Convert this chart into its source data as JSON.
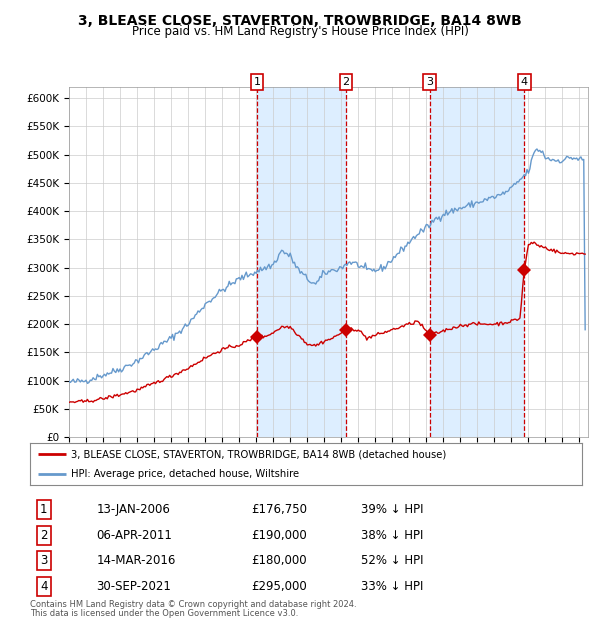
{
  "title": "3, BLEASE CLOSE, STAVERTON, TROWBRIDGE, BA14 8WB",
  "subtitle": "Price paid vs. HM Land Registry's House Price Index (HPI)",
  "legend_line1": "3, BLEASE CLOSE, STAVERTON, TROWBRIDGE, BA14 8WB (detached house)",
  "legend_line2": "HPI: Average price, detached house, Wiltshire",
  "footer1": "Contains HM Land Registry data © Crown copyright and database right 2024.",
  "footer2": "This data is licensed under the Open Government Licence v3.0.",
  "transactions": [
    {
      "num": 1,
      "date": "13-JAN-2006",
      "price": 176750,
      "pct": "39% ↓ HPI",
      "date_val": 2006.04
    },
    {
      "num": 2,
      "date": "06-APR-2011",
      "price": 190000,
      "pct": "38% ↓ HPI",
      "date_val": 2011.27
    },
    {
      "num": 3,
      "date": "14-MAR-2016",
      "price": 180000,
      "pct": "52% ↓ HPI",
      "date_val": 2016.2
    },
    {
      "num": 4,
      "date": "30-SEP-2021",
      "price": 295000,
      "pct": "33% ↓ HPI",
      "date_val": 2021.75
    }
  ],
  "hpi_color": "#6699cc",
  "price_color": "#cc0000",
  "marker_color": "#cc0000",
  "dashed_color": "#cc0000",
  "shade_color": "#ddeeff",
  "grid_color": "#cccccc",
  "bg_color": "#ffffff",
  "ylim": [
    0,
    620000
  ],
  "yticks": [
    0,
    50000,
    100000,
    150000,
    200000,
    250000,
    300000,
    350000,
    400000,
    450000,
    500000,
    550000,
    600000
  ],
  "xlim_start": 1995.0,
  "xlim_end": 2025.5
}
